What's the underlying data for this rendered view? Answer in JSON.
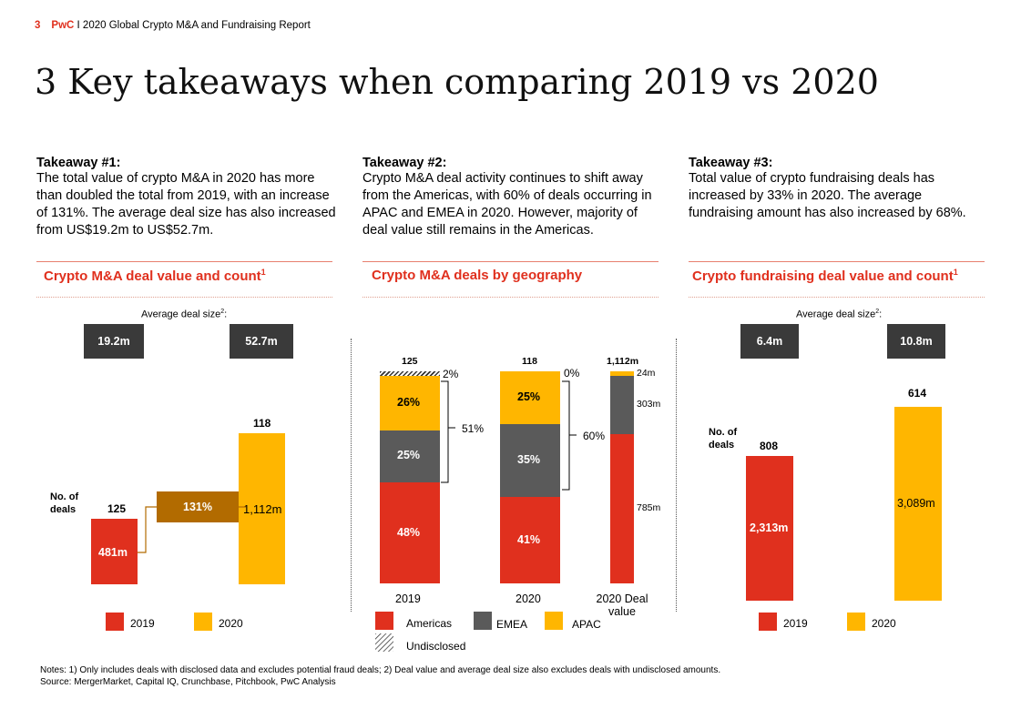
{
  "header": {
    "page_number": "3",
    "brand": "PwC",
    "report": "I 2020 Global Crypto M&A and Fundraising Report"
  },
  "title": "3 Key takeaways when comparing 2019 vs 2020",
  "takeaways": [
    {
      "head": "Takeaway #1:",
      "body": "The total value of crypto M&A in 2020 has more than doubled the total from 2019, with an increase of 131%. The average deal size has also increased from US$19.2m to US$52.7m."
    },
    {
      "head": "Takeaway #2:",
      "body": "Crypto M&A deal activity continues to shift away from the Americas, with 60% of deals occurring in APAC and EMEA in 2020. However, majority of deal value still remains in the Americas."
    },
    {
      "head": "Takeaway #3:",
      "body": "Total value of crypto fundraising deals has increased by 33% in 2020. The average fundraising amount has also increased by 68%."
    }
  ],
  "panels": {
    "ma": {
      "title": "Crypto M&A deal value and count",
      "sup": "1"
    },
    "geo": {
      "title": "Crypto M&A deals by geography"
    },
    "fund": {
      "title": "Crypto fundraising deal value and count",
      "sup": "1"
    }
  },
  "common": {
    "avg_label": "Average deal size",
    "avg_sup": "2",
    "avg_colon": ":",
    "deals_label_1": "No. of",
    "deals_label_2": "deals"
  },
  "colors": {
    "americas": "#e0301e",
    "emea": "#5a5a5a",
    "apac": "#ffb600",
    "year2019": "#e0301e",
    "year2020": "#ffb600",
    "growth": "#b26b00"
  },
  "chart_data": [
    {
      "type": "bar",
      "title": "Crypto M&A deal value and count",
      "categories": [
        "2019",
        "2020"
      ],
      "value_labels": [
        "481m",
        "1,112m"
      ],
      "values": [
        481,
        1112
      ],
      "deal_counts": [
        "125",
        "118"
      ],
      "avg_deal_size": [
        "19.2m",
        "52.7m"
      ],
      "growth_label": "131%",
      "legend": [
        "2019",
        "2020"
      ]
    },
    {
      "type": "bar",
      "title": "Crypto M&A deals by geography",
      "categories": [
        "2019",
        "2020",
        "2020 Deal value"
      ],
      "totals": [
        "125",
        "118",
        "1,112m"
      ],
      "series": [
        {
          "name": "Americas",
          "values": [
            48,
            41,
            785
          ],
          "labels": [
            "48%",
            "41%",
            "785m"
          ]
        },
        {
          "name": "EMEA",
          "values": [
            25,
            35,
            303
          ],
          "labels": [
            "25%",
            "35%",
            "303m"
          ]
        },
        {
          "name": "APAC",
          "values": [
            26,
            25,
            24
          ],
          "labels": [
            "26%",
            "25%",
            "24m"
          ]
        },
        {
          "name": "Undisclosed",
          "values": [
            2,
            0,
            0
          ],
          "labels": [
            "2%",
            "0%",
            ""
          ]
        }
      ],
      "brackets": [
        "51%",
        "60%"
      ],
      "legend": [
        "Americas",
        "EMEA",
        "APAC",
        "Undisclosed"
      ]
    },
    {
      "type": "bar",
      "title": "Crypto fundraising deal value and count",
      "categories": [
        "2019",
        "2020"
      ],
      "values": [
        2313,
        3089
      ],
      "value_labels": [
        "2,313m",
        "3,089m"
      ],
      "deal_counts": [
        "808",
        "614"
      ],
      "avg_deal_size": [
        "6.4m",
        "10.8m"
      ],
      "legend": [
        "2019",
        "2020"
      ]
    }
  ],
  "notes": [
    "Notes: 1) Only includes deals with disclosed data and excludes potential fraud deals; 2) Deal value and average deal size also excludes deals with undisclosed amounts.",
    "Source: MergerMarket, Capital IQ, Crunchbase, Pitchbook, PwC Analysis"
  ]
}
